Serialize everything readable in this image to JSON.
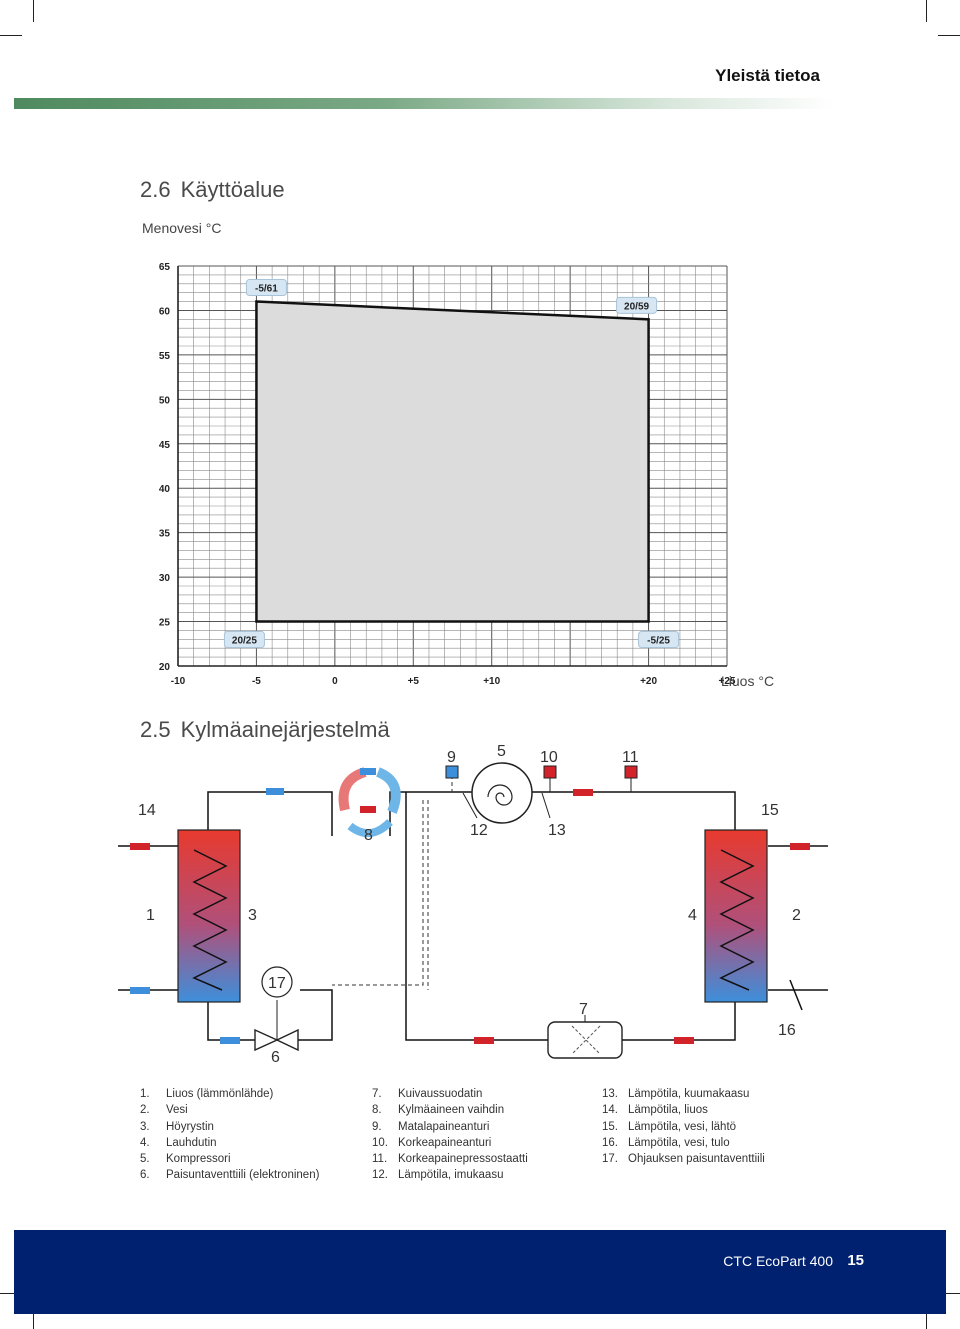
{
  "header": {
    "title": "Yleistä tietoa"
  },
  "section_operating": {
    "number": "2.6",
    "title": "Käyttöalue"
  },
  "chart_data": {
    "type": "area",
    "ylabel": "Menovesi °C",
    "xlabel": "Liuos °C",
    "x_ticks": [
      "-10",
      "-5",
      "0",
      "+5",
      "+10",
      "+20",
      "+25"
    ],
    "x_tick_values": [
      -10,
      -5,
      0,
      5,
      10,
      20,
      25
    ],
    "y_ticks": [
      "20",
      "25",
      "30",
      "35",
      "40",
      "45",
      "50",
      "55",
      "60",
      "65"
    ],
    "xlim": [
      -10,
      25
    ],
    "ylim": [
      20,
      65
    ],
    "grid": true,
    "region": [
      {
        "x": -5,
        "y": 61
      },
      {
        "x": 20,
        "y": 59
      },
      {
        "x": 20,
        "y": 25
      },
      {
        "x": -5,
        "y": 25
      }
    ],
    "point_labels": [
      "-5/61",
      "20/59",
      "-5/25",
      "20/25"
    ]
  },
  "section_refrigerant": {
    "number": "2.5",
    "title": "Kylmäainejärjestelmä"
  },
  "diagram_labels": [
    "1",
    "2",
    "3",
    "4",
    "5",
    "6",
    "7",
    "8",
    "9",
    "10",
    "11",
    "12",
    "13",
    "14",
    "15",
    "16",
    "17"
  ],
  "legend": {
    "col1": [
      {
        "n": "1.",
        "t": "Liuos (lämmönlähde)"
      },
      {
        "n": "2.",
        "t": "Vesi"
      },
      {
        "n": "3.",
        "t": "Höyrystin"
      },
      {
        "n": "4.",
        "t": "Lauhdutin"
      },
      {
        "n": "5.",
        "t": "Kompressori"
      },
      {
        "n": "6.",
        "t": "Paisuntaventtiili (elektroninen)"
      }
    ],
    "col2": [
      {
        "n": "7.",
        "t": "Kuivaussuodatin"
      },
      {
        "n": "8.",
        "t": "Kylmäaineen vaihdin"
      },
      {
        "n": "9.",
        "t": "Matalapaineanturi"
      },
      {
        "n": "10.",
        "t": "Korkeapaineanturi"
      },
      {
        "n": "11.",
        "t": "Korkeapainepressostaatti"
      },
      {
        "n": "12.",
        "t": "Lämpötila, imukaasu"
      }
    ],
    "col3": [
      {
        "n": "13.",
        "t": "Lämpötila, kuumakaasu"
      },
      {
        "n": "14.",
        "t": "Lämpötila, liuos"
      },
      {
        "n": "15.",
        "t": "Lämpötila, vesi, lähtö"
      },
      {
        "n": "16.",
        "t": "Lämpötila, vesi, tulo"
      },
      {
        "n": "17.",
        "t": "Ohjauksen paisuntaventtiili"
      }
    ]
  },
  "footer": {
    "product": "CTC EcoPart 400",
    "page": "15"
  }
}
